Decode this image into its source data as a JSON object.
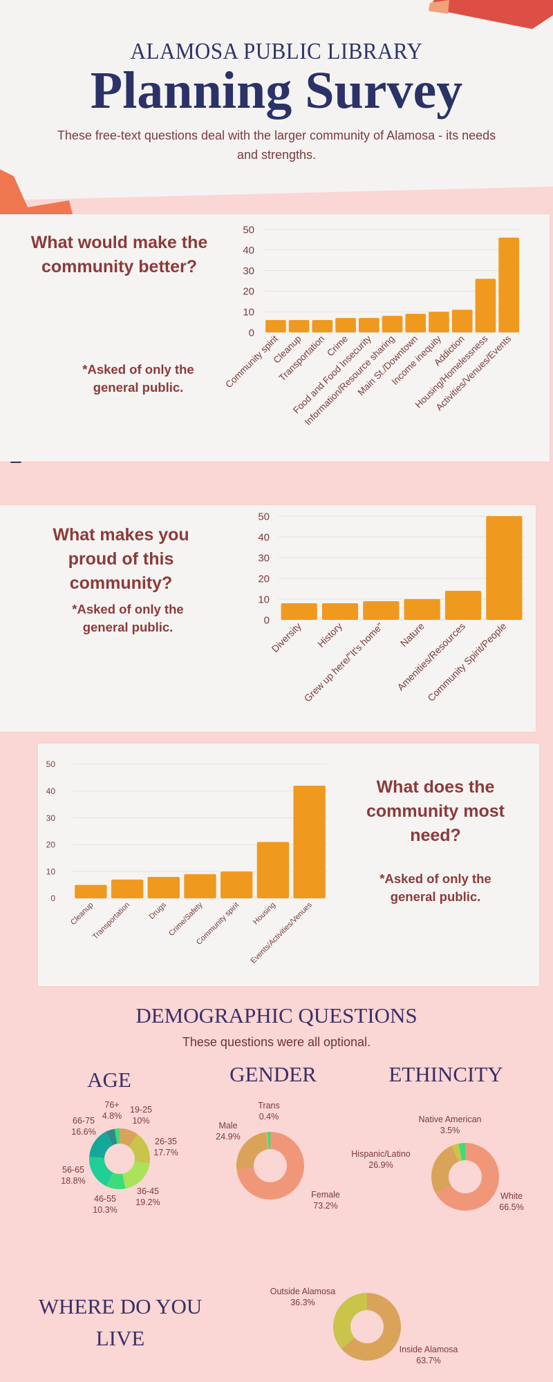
{
  "header": {
    "kicker": "ALAMOSA PUBLIC LIBRARY",
    "title": "Planning Survey",
    "subtitle": "These free-text questions deal with the larger community of Alamosa - its needs and strengths."
  },
  "colors": {
    "bar": "#f0991f",
    "title": "#2a3268",
    "question": "#8b3a3a",
    "page_bg": "#fad6d4",
    "panel_bg": "#f5f4f2"
  },
  "sections": [
    {
      "question": "What would make the community better?",
      "note": "*Asked of only the general public."
    },
    {
      "question": "What makes you proud of this community?",
      "note": "*Asked of only the general public."
    },
    {
      "question": "What does the community most need?",
      "note": "*Asked of only the general public."
    }
  ],
  "demographics": {
    "heading": "DEMOGRAPHIC QUESTIONS",
    "subtitle": "These questions were all optional.",
    "age_heading": "AGE",
    "gender_heading": "GENDER",
    "ethnicity_heading": "ETHINCITY",
    "live_heading": "WHERE DO YOU LIVE"
  },
  "chart_data": [
    {
      "type": "bar",
      "title": "What would make the community better?",
      "categories": [
        "Community spirit",
        "Cleanup",
        "Transportation",
        "Crime",
        "Food and Food Insecurity",
        "Information/Resource sharing",
        "Main St./Downtown",
        "Income inequity",
        "Addiction",
        "Housing/Homelessness",
        "Activities/Venues/Events"
      ],
      "values": [
        6,
        6,
        6,
        7,
        7,
        8,
        9,
        10,
        11,
        26,
        46
      ],
      "ylim": [
        0,
        50
      ],
      "yticks": [
        0,
        10,
        20,
        30,
        40,
        50
      ],
      "grid": true
    },
    {
      "type": "bar",
      "title": "What makes you proud of this community?",
      "categories": [
        "Diversity",
        "History",
        "Grew up here/\"It's home\"",
        "Nature",
        "Amenities/Resources",
        "Community Spirit/People"
      ],
      "values": [
        8,
        8,
        9,
        10,
        14,
        50
      ],
      "ylim": [
        0,
        50
      ],
      "yticks": [
        0,
        10,
        20,
        30,
        40,
        50
      ],
      "grid": true
    },
    {
      "type": "bar",
      "title": "What does the community most need?",
      "categories": [
        "Cleanup",
        "Transportation",
        "Drugs",
        "Crime/Safety",
        "Community spirit",
        "Housing",
        "Events/Activities/Venues"
      ],
      "values": [
        5,
        7,
        8,
        9,
        10,
        21,
        42
      ],
      "ylim": [
        0,
        50
      ],
      "yticks": [
        0,
        10,
        20,
        30,
        40,
        50
      ],
      "grid": true
    },
    {
      "type": "pie",
      "title": "AGE",
      "donut": true,
      "slices": [
        {
          "label": "19-25",
          "value": 10,
          "display": "10%",
          "color": "#d9a35a"
        },
        {
          "label": "26-35",
          "value": 17.7,
          "display": "17.7%",
          "color": "#c9c44a"
        },
        {
          "label": "36-45",
          "value": 19.2,
          "display": "19.2%",
          "color": "#a8e35a"
        },
        {
          "label": "46-55",
          "value": 10.3,
          "display": "10.3%",
          "color": "#3ddc7a"
        },
        {
          "label": "56-65",
          "value": 18.8,
          "display": "18.8%",
          "color": "#1fcf95"
        },
        {
          "label": "66-75",
          "value": 16.6,
          "display": "16.6%",
          "color": "#14a89a"
        },
        {
          "label": "76+",
          "value": 4.8,
          "display": "4.8%",
          "color": "#2e8b8b"
        }
      ]
    },
    {
      "type": "pie",
      "title": "GENDER",
      "donut": true,
      "slices": [
        {
          "label": "Female",
          "value": 73.2,
          "display": "73.2%",
          "color": "#f0977a"
        },
        {
          "label": "Male",
          "value": 24.9,
          "display": "24.9%",
          "color": "#d9a35a"
        },
        {
          "label": "Trans",
          "value": 0.4,
          "display": "0.4%",
          "color": "#a8e35a"
        }
      ]
    },
    {
      "type": "pie",
      "title": "ETHINCITY",
      "donut": true,
      "slices": [
        {
          "label": "White",
          "value": 66.5,
          "display": "66.5%",
          "color": "#f0977a"
        },
        {
          "label": "Hispanic/Latino",
          "value": 26.9,
          "display": "26.9%",
          "color": "#d9a35a"
        },
        {
          "label": "Native American",
          "value": 3.5,
          "display": "3.5%",
          "color": "#c9c44a"
        }
      ]
    },
    {
      "type": "pie",
      "title": "WHERE DO YOU LIVE",
      "donut": true,
      "slices": [
        {
          "label": "Inside Alamosa",
          "value": 63.7,
          "display": "63.7%",
          "color": "#d9a35a"
        },
        {
          "label": "Outside Alamosa",
          "value": 36.3,
          "display": "36.3%",
          "color": "#c9c44a"
        }
      ]
    }
  ]
}
